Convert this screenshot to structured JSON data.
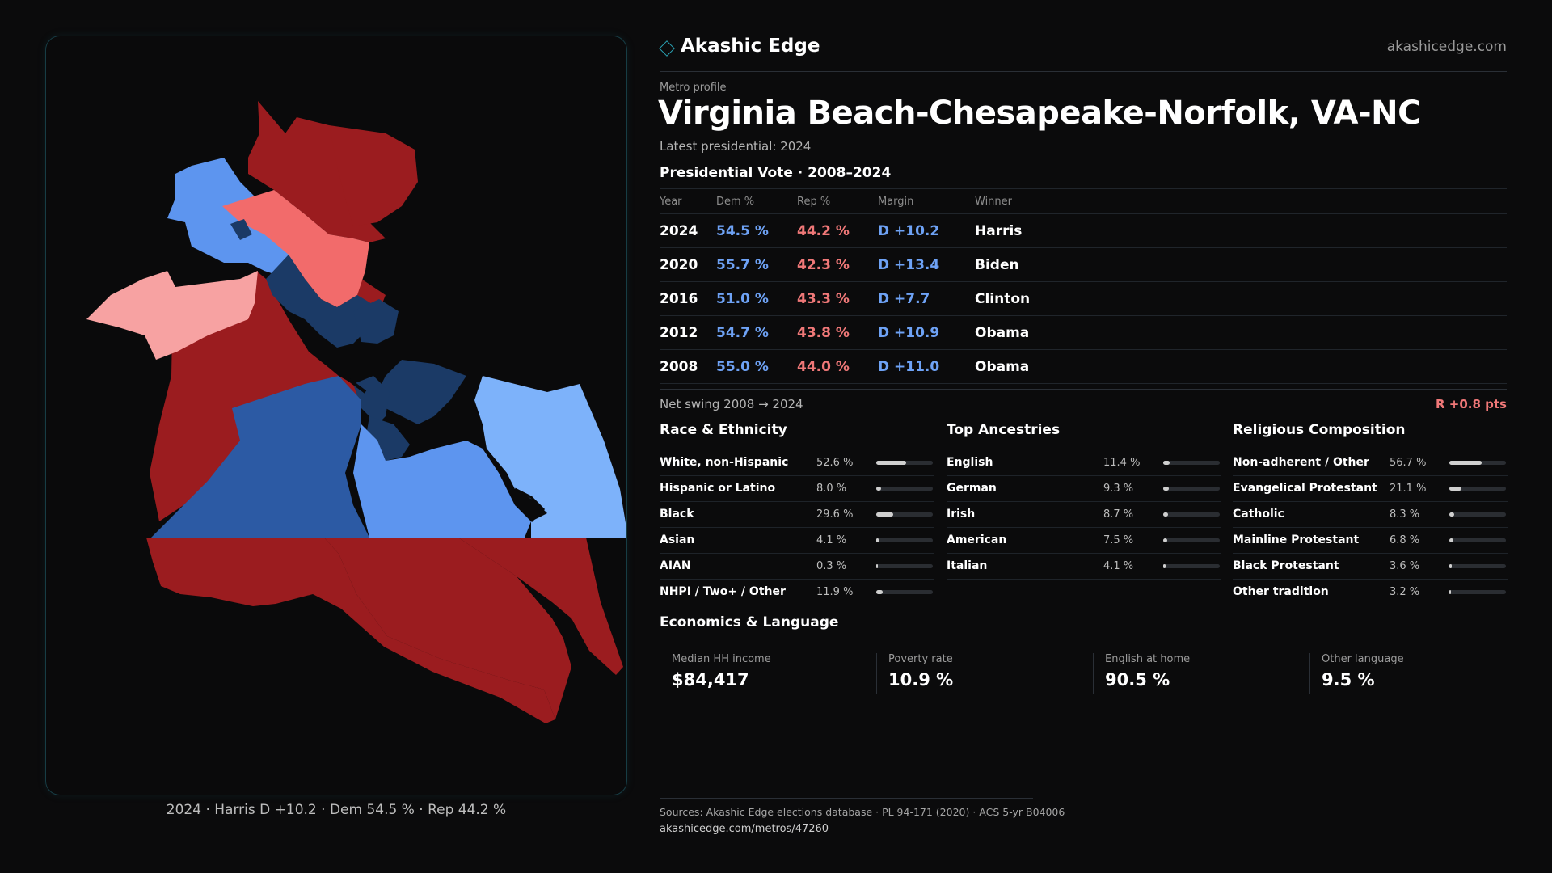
{
  "brand": {
    "name": "Akashic Edge",
    "url": "akashicedge.com"
  },
  "header": {
    "kicker": "Metro profile",
    "title": "Virginia Beach-Chesapeake-Norfolk, VA-NC",
    "latest": "Latest presidential: 2024"
  },
  "vote": {
    "title": "Presidential Vote · 2008–2024",
    "columns": [
      "Year",
      "Dem %",
      "Rep %",
      "Margin",
      "Winner"
    ],
    "rows": [
      {
        "year": "2024",
        "dem": "54.5 %",
        "rep": "44.2 %",
        "margin": "D +10.2",
        "winner": "Harris"
      },
      {
        "year": "2020",
        "dem": "55.7 %",
        "rep": "42.3 %",
        "margin": "D +13.4",
        "winner": "Biden"
      },
      {
        "year": "2016",
        "dem": "51.0 %",
        "rep": "43.3 %",
        "margin": "D +7.7",
        "winner": "Clinton"
      },
      {
        "year": "2012",
        "dem": "54.7 %",
        "rep": "43.8 %",
        "margin": "D +10.9",
        "winner": "Obama"
      },
      {
        "year": "2008",
        "dem": "55.0 %",
        "rep": "44.0 %",
        "margin": "D +11.0",
        "winner": "Obama"
      }
    ],
    "swing_label": "Net swing 2008 → 2024",
    "swing_value": "R +0.8 pts"
  },
  "race": {
    "title": "Race & Ethnicity",
    "items": [
      {
        "label": "White, non-Hispanic",
        "pct": "52.6 %",
        "value": 52.6
      },
      {
        "label": "Hispanic or Latino",
        "pct": "8.0 %",
        "value": 8.0
      },
      {
        "label": "Black",
        "pct": "29.6 %",
        "value": 29.6
      },
      {
        "label": "Asian",
        "pct": "4.1 %",
        "value": 4.1
      },
      {
        "label": "AIAN",
        "pct": "0.3 %",
        "value": 0.3
      },
      {
        "label": "NHPI / Two+ / Other",
        "pct": "11.9 %",
        "value": 11.9
      }
    ]
  },
  "ancestry": {
    "title": "Top Ancestries",
    "items": [
      {
        "label": "English",
        "pct": "11.4 %",
        "value": 11.4
      },
      {
        "label": "German",
        "pct": "9.3 %",
        "value": 9.3
      },
      {
        "label": "Irish",
        "pct": "8.7 %",
        "value": 8.7
      },
      {
        "label": "American",
        "pct": "7.5 %",
        "value": 7.5
      },
      {
        "label": "Italian",
        "pct": "4.1 %",
        "value": 4.1
      }
    ]
  },
  "religion": {
    "title": "Religious Composition",
    "items": [
      {
        "label": "Non-adherent / Other",
        "pct": "56.7 %",
        "value": 56.7
      },
      {
        "label": "Evangelical Protestant",
        "pct": "21.1 %",
        "value": 21.1
      },
      {
        "label": "Catholic",
        "pct": "8.3 %",
        "value": 8.3
      },
      {
        "label": "Mainline Protestant",
        "pct": "6.8 %",
        "value": 6.8
      },
      {
        "label": "Black Protestant",
        "pct": "3.6 %",
        "value": 3.6
      },
      {
        "label": "Other tradition",
        "pct": "3.2 %",
        "value": 3.2
      }
    ]
  },
  "economics": {
    "title": "Economics & Language",
    "items": [
      {
        "label": "Median HH income",
        "value": "$84,417"
      },
      {
        "label": "Poverty rate",
        "value": "10.9 %"
      },
      {
        "label": "English at home",
        "value": "90.5 %"
      },
      {
        "label": "Other language",
        "value": "9.5 %"
      }
    ]
  },
  "map": {
    "caption": "2024 · Harris D +10.2 · Dem 54.5 % · Rep 44.2 %",
    "colors": {
      "safe_rep": "#9b1c1f",
      "lean_rep": "#f26b6b",
      "tilt_rep": "#f7a2a2",
      "safe_dem": "#1b3a66",
      "likely_dem": "#2c5aa4",
      "lean_dem": "#5d95ef",
      "tilt_dem": "#7db2fa"
    }
  },
  "sources": {
    "line1": "Sources: Akashic Edge elections database · PL 94-171 (2020) · ACS 5-yr B04006",
    "line2": "akashicedge.com/metros/47260"
  }
}
